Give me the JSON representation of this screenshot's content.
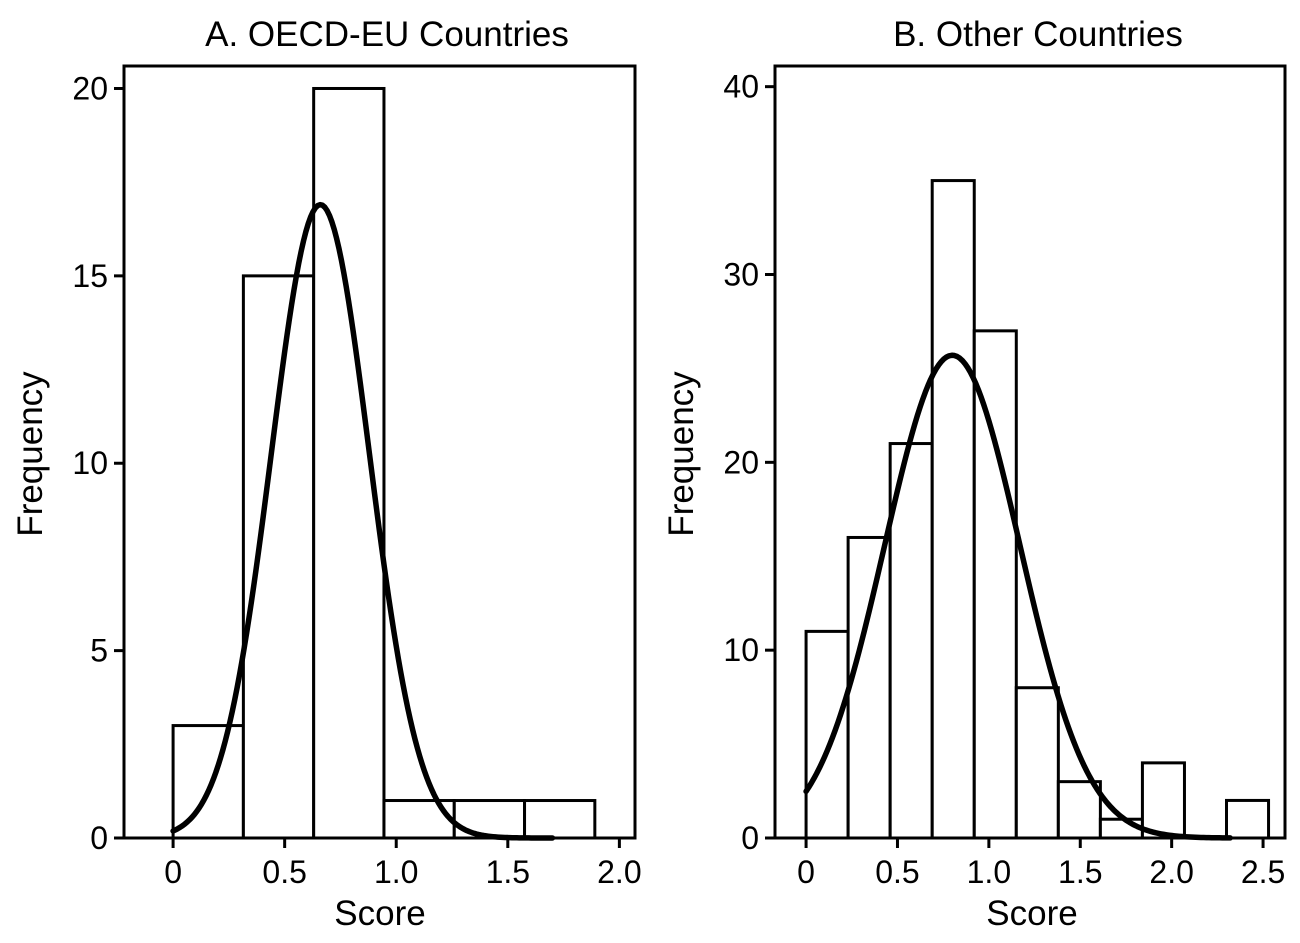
{
  "chart_data": [
    {
      "type": "bar",
      "subtype": "histogram with fitted normal curve",
      "title": "A. OECD-EU Countries",
      "xlabel": "Score",
      "ylabel": "Frequency",
      "xlim": [
        -0.22,
        2.07
      ],
      "ylim": [
        0,
        20.6
      ],
      "xticks": [
        0,
        0.5,
        1.0,
        1.5,
        2.0
      ],
      "xtick_labels": [
        "0",
        "0.5",
        "1.0",
        "1.5",
        "2.0"
      ],
      "yticks": [
        0,
        5,
        10,
        15,
        20
      ],
      "ytick_labels": [
        "0",
        "5",
        "10",
        "15",
        "20"
      ],
      "grid": false,
      "bins": [
        {
          "start": 0.0,
          "end": 0.315,
          "count": 3
        },
        {
          "start": 0.315,
          "end": 0.63,
          "count": 15
        },
        {
          "start": 0.63,
          "end": 0.945,
          "count": 20
        },
        {
          "start": 0.945,
          "end": 1.26,
          "count": 1
        },
        {
          "start": 1.26,
          "end": 1.575,
          "count": 1
        },
        {
          "start": 1.575,
          "end": 1.89,
          "count": 1
        }
      ],
      "curve": {
        "type": "normal",
        "mean": 0.66,
        "sd": 0.22,
        "peak": 16.9,
        "x_start": 0.0,
        "x_end": 1.7
      }
    },
    {
      "type": "bar",
      "subtype": "histogram with fitted normal curve",
      "title": "B. Other Countries",
      "xlabel": "Score",
      "ylabel": "Frequency",
      "xlim": [
        -0.17,
        2.62
      ],
      "ylim": [
        0,
        41.1
      ],
      "xticks": [
        0,
        0.5,
        1.0,
        1.5,
        2.0,
        2.5
      ],
      "xtick_labels": [
        "0",
        "0.5",
        "1.0",
        "1.5",
        "2.0",
        "2.5"
      ],
      "yticks": [
        0,
        10,
        20,
        30,
        40
      ],
      "ytick_labels": [
        "0",
        "10",
        "20",
        "30",
        "40"
      ],
      "grid": false,
      "bins": [
        {
          "start": 0.0,
          "end": 0.23,
          "count": 11
        },
        {
          "start": 0.23,
          "end": 0.46,
          "count": 16
        },
        {
          "start": 0.46,
          "end": 0.69,
          "count": 21
        },
        {
          "start": 0.69,
          "end": 0.92,
          "count": 35
        },
        {
          "start": 0.92,
          "end": 1.15,
          "count": 27
        },
        {
          "start": 1.15,
          "end": 1.38,
          "count": 8
        },
        {
          "start": 1.38,
          "end": 1.61,
          "count": 3
        },
        {
          "start": 1.61,
          "end": 1.84,
          "count": 1
        },
        {
          "start": 1.84,
          "end": 2.07,
          "count": 4
        },
        {
          "start": 2.07,
          "end": 2.3,
          "count": 0
        },
        {
          "start": 2.3,
          "end": 2.53,
          "count": 2
        }
      ],
      "curve": {
        "type": "normal",
        "mean": 0.8,
        "sd": 0.37,
        "peak": 25.7,
        "x_start": 0.0,
        "x_end": 2.32
      }
    }
  ]
}
